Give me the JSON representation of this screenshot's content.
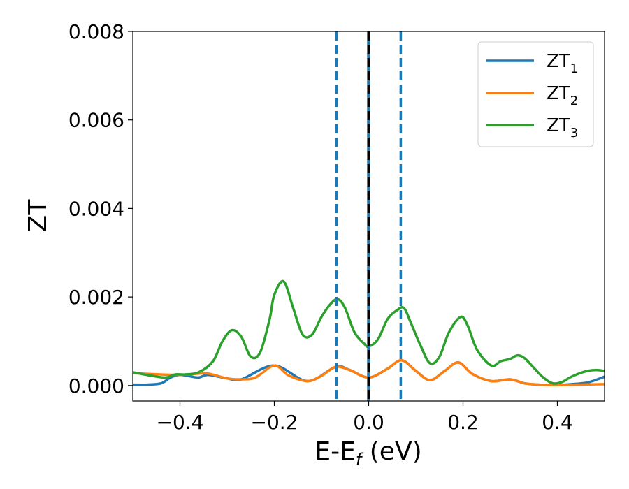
{
  "chart_data": {
    "type": "line",
    "xlabel_main": "E-E",
    "xlabel_sub": "f",
    "xlabel_unit": " (eV)",
    "ylabel": "ZT",
    "xlim": [
      -0.5,
      0.5
    ],
    "ylim": [
      -0.00035,
      0.008
    ],
    "x_ticks": [
      -0.4,
      -0.2,
      0.0,
      0.2,
      0.4
    ],
    "x_tick_labels": [
      "−0.4",
      "−0.2",
      "0.0",
      "0.2",
      "0.4"
    ],
    "y_ticks": [
      0.0,
      0.002,
      0.004,
      0.006,
      0.008
    ],
    "y_tick_labels": [
      "0.000",
      "0.002",
      "0.004",
      "0.006",
      "0.008"
    ],
    "grid": false,
    "legend_position": "top-right",
    "colors": {
      "zt1": "#1f77b4",
      "zt2": "#ff7f0e",
      "zt3": "#2ca02c",
      "fermi_line": "#000000",
      "dashed_lines": "#1f77b4"
    },
    "vertical_lines": [
      {
        "x": -0.068,
        "style": "dashed",
        "color": "#1f77b4"
      },
      {
        "x": 0.0,
        "style": "solid",
        "color": "#1f77b4"
      },
      {
        "x": 0.0,
        "style": "dashed",
        "color": "#000000"
      },
      {
        "x": 0.068,
        "style": "dashed",
        "color": "#1f77b4"
      }
    ],
    "series": [
      {
        "name": "ZT",
        "subscript": "1",
        "color": "#1f77b4",
        "x": [
          -0.5,
          -0.47,
          -0.44,
          -0.42,
          -0.4,
          -0.38,
          -0.36,
          -0.34,
          -0.3,
          -0.27,
          -0.2,
          -0.13,
          -0.07,
          -0.04,
          0.0,
          0.04,
          0.07,
          0.1,
          0.13,
          0.16,
          0.19,
          0.22,
          0.26,
          0.3,
          0.33,
          0.36,
          0.4,
          0.43,
          0.46,
          0.48,
          0.5
        ],
        "y": [
          2e-05,
          2e-05,
          5e-05,
          0.00018,
          0.00024,
          0.00021,
          0.00018,
          0.00024,
          0.00016,
          0.00014,
          0.00045,
          0.0001,
          0.00042,
          0.00035,
          0.00018,
          0.00038,
          0.00057,
          0.00033,
          0.00012,
          0.00032,
          0.00052,
          0.00026,
          0.0001,
          0.00014,
          5e-05,
          2e-05,
          1e-05,
          3e-05,
          6e-05,
          0.00012,
          0.0002
        ]
      },
      {
        "name": "ZT",
        "subscript": "2",
        "color": "#ff7f0e",
        "x": [
          -0.5,
          -0.44,
          -0.4,
          -0.37,
          -0.34,
          -0.3,
          -0.27,
          -0.24,
          -0.2,
          -0.17,
          -0.13,
          -0.1,
          -0.07,
          -0.04,
          0.0,
          0.04,
          0.07,
          0.1,
          0.13,
          0.16,
          0.19,
          0.22,
          0.26,
          0.3,
          0.33,
          0.36,
          0.4,
          0.44,
          0.5
        ],
        "y": [
          0.00028,
          0.00025,
          0.00024,
          0.00026,
          0.00027,
          0.00016,
          0.00014,
          0.00018,
          0.00045,
          0.00023,
          0.0001,
          0.00022,
          0.00042,
          0.00035,
          0.00018,
          0.00038,
          0.00057,
          0.00033,
          0.00012,
          0.00032,
          0.00052,
          0.00026,
          0.0001,
          0.00014,
          5e-05,
          2e-05,
          1e-05,
          2e-05,
          3e-05
        ]
      },
      {
        "name": "ZT",
        "subscript": "3",
        "color": "#2ca02c",
        "x": [
          -0.5,
          -0.46,
          -0.43,
          -0.41,
          -0.39,
          -0.36,
          -0.33,
          -0.31,
          -0.29,
          -0.27,
          -0.25,
          -0.23,
          -0.21,
          -0.2,
          -0.18,
          -0.16,
          -0.14,
          -0.12,
          -0.1,
          -0.08,
          -0.065,
          -0.05,
          -0.03,
          -0.01,
          0.0,
          0.02,
          0.04,
          0.06,
          0.075,
          0.09,
          0.11,
          0.13,
          0.15,
          0.17,
          0.195,
          0.21,
          0.23,
          0.26,
          0.28,
          0.3,
          0.315,
          0.33,
          0.35,
          0.37,
          0.39,
          0.41,
          0.43,
          0.46,
          0.48,
          0.5
        ],
        "y": [
          0.0003,
          0.00022,
          0.00018,
          0.00025,
          0.00025,
          0.0003,
          0.00055,
          0.001,
          0.00125,
          0.0011,
          0.00065,
          0.00075,
          0.0015,
          0.00205,
          0.00235,
          0.00175,
          0.00115,
          0.00115,
          0.00155,
          0.00185,
          0.00195,
          0.00175,
          0.0012,
          0.00095,
          0.00088,
          0.00105,
          0.0015,
          0.0017,
          0.00175,
          0.0014,
          0.0009,
          0.0005,
          0.00065,
          0.0012,
          0.00155,
          0.00135,
          0.0008,
          0.00045,
          0.00055,
          0.0006,
          0.00068,
          0.00062,
          0.0004,
          0.00018,
          5e-05,
          8e-05,
          0.0002,
          0.00032,
          0.00035,
          0.00033
        ]
      }
    ]
  }
}
